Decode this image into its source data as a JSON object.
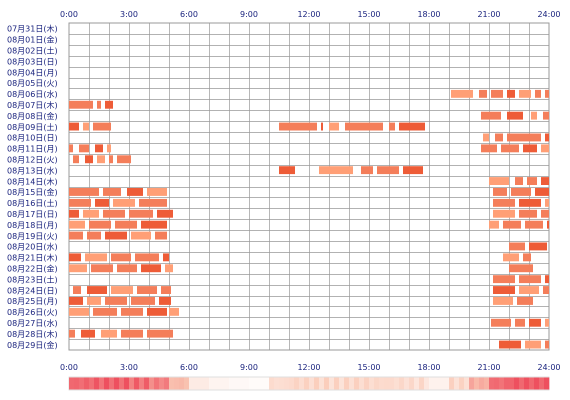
{
  "chart_data": {
    "type": "timeline",
    "title": "",
    "xlabel": "",
    "ylabel": "",
    "x_unit": "hour of day",
    "xlim": [
      0,
      24
    ],
    "x_ticks": [
      "0:00",
      "3:00",
      "6:00",
      "9:00",
      "12:00",
      "15:00",
      "18:00",
      "21:00",
      "24:00"
    ],
    "grid": true,
    "colors": {
      "bar": "#f47e5a",
      "bar_dark": "#ee5c37",
      "bar_light": "#ff9f76",
      "grid": "#999999",
      "label": "#1a237e"
    },
    "rows": [
      {
        "label": "07月31日(木)",
        "segments": []
      },
      {
        "label": "08月01日(金)",
        "segments": []
      },
      {
        "label": "08月02日(土)",
        "segments": []
      },
      {
        "label": "08月03日(日)",
        "segments": []
      },
      {
        "label": "08月04日(月)",
        "segments": []
      },
      {
        "label": "08月05日(火)",
        "segments": []
      },
      {
        "label": "08月06日(水)",
        "segments": [
          [
            19.1,
            20.2
          ],
          [
            20.5,
            20.9
          ],
          [
            21.1,
            21.7
          ],
          [
            21.9,
            22.3
          ],
          [
            22.5,
            23.1
          ],
          [
            23.3,
            23.6
          ],
          [
            23.8,
            24.0
          ]
        ]
      },
      {
        "label": "08月07日(木)",
        "segments": [
          [
            0.0,
            1.2
          ],
          [
            1.4,
            1.6
          ],
          [
            1.8,
            2.2
          ]
        ]
      },
      {
        "label": "08月08日(金)",
        "segments": [
          [
            20.6,
            21.6
          ],
          [
            21.9,
            22.7
          ],
          [
            23.1,
            23.4
          ],
          [
            23.7,
            24.0
          ]
        ]
      },
      {
        "label": "08月09日(土)",
        "segments": [
          [
            0.0,
            0.5
          ],
          [
            0.7,
            1.0
          ],
          [
            1.2,
            2.1
          ],
          [
            10.5,
            12.4
          ],
          [
            12.6,
            12.7
          ],
          [
            13.0,
            13.5
          ],
          [
            13.8,
            15.7
          ],
          [
            16.0,
            16.3
          ],
          [
            16.5,
            17.8
          ]
        ]
      },
      {
        "label": "08月10日(日)",
        "segments": [
          [
            20.7,
            21.0
          ],
          [
            21.3,
            21.7
          ],
          [
            21.9,
            23.6
          ],
          [
            23.8,
            24.0
          ]
        ]
      },
      {
        "label": "08月11日(月)",
        "segments": [
          [
            0.0,
            0.2
          ],
          [
            0.5,
            1.0
          ],
          [
            1.3,
            1.7
          ],
          [
            1.9,
            2.1
          ],
          [
            20.6,
            21.4
          ],
          [
            21.6,
            22.5
          ],
          [
            22.7,
            23.4
          ],
          [
            23.6,
            24.0
          ]
        ]
      },
      {
        "label": "08月12日(火)",
        "segments": [
          [
            0.2,
            0.5
          ],
          [
            0.8,
            1.2
          ],
          [
            1.4,
            1.8
          ],
          [
            2.0,
            2.2
          ],
          [
            2.4,
            3.1
          ]
        ]
      },
      {
        "label": "08月13日(水)",
        "segments": [
          [
            10.5,
            11.3
          ],
          [
            12.5,
            14.2
          ],
          [
            14.6,
            15.2
          ],
          [
            15.4,
            16.5
          ],
          [
            16.7,
            17.7
          ]
        ]
      },
      {
        "label": "08月14日(木)",
        "segments": [
          [
            21.0,
            22.0
          ],
          [
            22.3,
            22.7
          ],
          [
            22.9,
            23.4
          ],
          [
            23.6,
            24.0
          ]
        ]
      },
      {
        "label": "08月15日(金)",
        "segments": [
          [
            0.0,
            1.5
          ],
          [
            1.7,
            2.6
          ],
          [
            2.9,
            3.7
          ],
          [
            3.9,
            4.9
          ],
          [
            21.2,
            21.9
          ],
          [
            22.1,
            23.1
          ],
          [
            23.3,
            24.0
          ]
        ]
      },
      {
        "label": "08月16日(土)",
        "segments": [
          [
            0.0,
            1.1
          ],
          [
            1.3,
            2.0
          ],
          [
            2.2,
            3.3
          ],
          [
            3.5,
            4.9
          ],
          [
            21.2,
            22.3
          ],
          [
            22.5,
            23.6
          ],
          [
            23.8,
            24.0
          ]
        ]
      },
      {
        "label": "08月17日(日)",
        "segments": [
          [
            0.0,
            0.5
          ],
          [
            0.7,
            1.5
          ],
          [
            1.7,
            2.8
          ],
          [
            3.0,
            4.2
          ],
          [
            4.4,
            5.2
          ],
          [
            21.2,
            22.3
          ],
          [
            22.5,
            23.4
          ],
          [
            23.6,
            24.0
          ]
        ]
      },
      {
        "label": "08月18日(月)",
        "segments": [
          [
            0.0,
            0.8
          ],
          [
            1.0,
            2.1
          ],
          [
            2.3,
            3.4
          ],
          [
            3.6,
            4.9
          ],
          [
            21.0,
            21.5
          ],
          [
            21.7,
            22.6
          ],
          [
            22.8,
            23.7
          ],
          [
            23.9,
            24.0
          ]
        ]
      },
      {
        "label": "08月19日(火)",
        "segments": [
          [
            0.0,
            0.7
          ],
          [
            0.9,
            1.6
          ],
          [
            1.8,
            2.9
          ],
          [
            3.1,
            4.1
          ],
          [
            4.3,
            4.9
          ]
        ]
      },
      {
        "label": "08月20日(水)",
        "segments": [
          [
            22.0,
            22.8
          ],
          [
            23.0,
            23.9
          ]
        ]
      },
      {
        "label": "08月21日(木)",
        "segments": [
          [
            0.0,
            0.6
          ],
          [
            0.8,
            1.9
          ],
          [
            2.1,
            3.1
          ],
          [
            3.3,
            4.5
          ],
          [
            4.7,
            5.0
          ],
          [
            21.7,
            22.5
          ],
          [
            22.7,
            23.1
          ]
        ]
      },
      {
        "label": "08月22日(金)",
        "segments": [
          [
            0.0,
            0.9
          ],
          [
            1.1,
            2.2
          ],
          [
            2.4,
            3.4
          ],
          [
            3.6,
            4.6
          ],
          [
            4.8,
            5.2
          ],
          [
            22.0,
            23.2
          ]
        ]
      },
      {
        "label": "08月23日(土)",
        "segments": [
          [
            21.2,
            22.3
          ],
          [
            22.5,
            23.6
          ],
          [
            23.8,
            24.0
          ]
        ]
      },
      {
        "label": "08月24日(日)",
        "segments": [
          [
            0.2,
            0.6
          ],
          [
            0.9,
            1.9
          ],
          [
            2.1,
            3.2
          ],
          [
            3.4,
            4.4
          ],
          [
            4.6,
            5.1
          ],
          [
            21.2,
            22.3
          ],
          [
            22.5,
            23.5
          ],
          [
            23.7,
            24.0
          ]
        ]
      },
      {
        "label": "08月25日(月)",
        "segments": [
          [
            0.0,
            0.7
          ],
          [
            0.9,
            1.6
          ],
          [
            1.8,
            2.9
          ],
          [
            3.1,
            4.3
          ],
          [
            4.5,
            5.1
          ],
          [
            21.2,
            22.2
          ],
          [
            22.4,
            23.2
          ]
        ]
      },
      {
        "label": "08月26日(火)",
        "segments": [
          [
            0.0,
            1.0
          ],
          [
            1.2,
            2.4
          ],
          [
            2.6,
            3.7
          ],
          [
            3.9,
            4.9
          ],
          [
            5.0,
            5.5
          ]
        ]
      },
      {
        "label": "08月27日(水)",
        "segments": [
          [
            21.1,
            22.1
          ],
          [
            22.3,
            22.8
          ],
          [
            23.0,
            23.6
          ],
          [
            23.8,
            24.0
          ]
        ]
      },
      {
        "label": "08月28日(木)",
        "segments": [
          [
            0.0,
            0.3
          ],
          [
            0.6,
            1.3
          ],
          [
            1.6,
            2.4
          ],
          [
            2.6,
            3.7
          ],
          [
            3.9,
            5.2
          ]
        ]
      },
      {
        "label": "08月29日(金)",
        "segments": [
          [
            21.5,
            22.6
          ],
          [
            22.8,
            23.6
          ],
          [
            23.8,
            24.0
          ]
        ]
      }
    ],
    "summary_density": [
      0.9,
      0.92,
      0.95,
      0.88,
      0.8,
      0.55,
      0.18,
      0.1,
      0.06,
      0.04,
      0.3,
      0.36,
      0.36,
      0.34,
      0.36,
      0.34,
      0.32,
      0.3,
      0.12,
      0.34,
      0.6,
      0.88,
      0.97,
      0.99
    ]
  }
}
